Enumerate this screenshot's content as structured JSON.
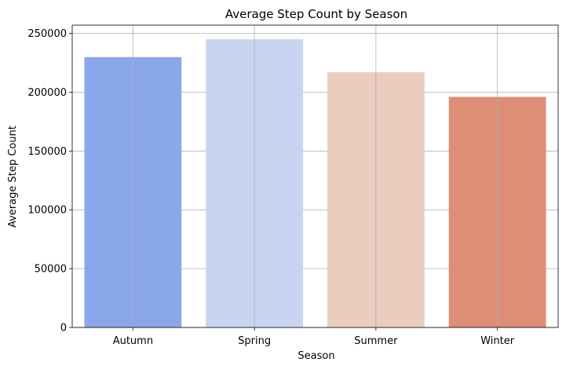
{
  "chart_data": {
    "type": "bar",
    "title": "Average Step Count by Season",
    "xlabel": "Season",
    "ylabel": "Average Step Count",
    "categories": [
      "Autumn",
      "Spring",
      "Summer",
      "Winter"
    ],
    "values": [
      229800,
      245000,
      217000,
      196000
    ],
    "ylim": [
      0,
      257000
    ],
    "yticks": [
      0,
      50000,
      100000,
      150000,
      200000,
      250000
    ],
    "ytick_labels": [
      "0",
      "50000",
      "100000",
      "150000",
      "200000",
      "250000"
    ],
    "grid": true,
    "legend": "none",
    "colors": [
      "#8aa7ea",
      "#c7d5f0",
      "#ebcdbf",
      "#dc8e77"
    ],
    "grid_color": "#b0b0b0",
    "axis_color": "#000000"
  }
}
